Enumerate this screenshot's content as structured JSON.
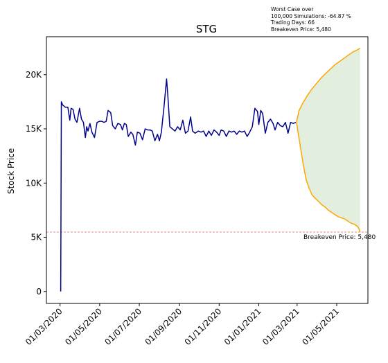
{
  "annotation": {
    "line1": "Worst Case over",
    "line2": "100,000 Simulations: -64.87 %",
    "line3": "Trading Days: 66",
    "line4": "Breakeven Price: 5,480"
  },
  "chart_data": {
    "type": "line",
    "title": "STG",
    "xlabel": "",
    "ylabel": "Stock Price",
    "ylim": [
      -1100,
      23500
    ],
    "yticks": [
      0,
      5000,
      10000,
      15000,
      20000
    ],
    "ytick_labels": [
      "0",
      "5K",
      "10K",
      "15K",
      "20K"
    ],
    "xticks": [
      "2020-03-01",
      "2020-05-01",
      "2020-07-01",
      "2020-09-01",
      "2020-11-01",
      "2021-01-01",
      "2021-03-01",
      "2021-05-01"
    ],
    "xtick_labels": [
      "01/03/2020",
      "01/05/2020",
      "01/07/2020",
      "01/09/2020",
      "01/11/2020",
      "01/01/2021",
      "01/03/2021",
      "01/05/2021"
    ],
    "xlim": [
      "2020-02-09",
      "2021-06-18"
    ],
    "grid": false,
    "colors": {
      "history": "#00008b",
      "projection": "#ffa500",
      "band": "#d9ead3",
      "breakeven": "#e06666"
    },
    "breakeven": {
      "value": 5480,
      "label": "Breakeven Price: 5,480"
    },
    "series": [
      {
        "values": [
          [
            "2020-03-02",
            0
          ],
          [
            "2020-03-03",
            17500
          ],
          [
            "2020-03-05",
            17200
          ],
          [
            "2020-03-09",
            17000
          ],
          [
            "2020-03-13",
            17000
          ],
          [
            "2020-03-16",
            15800
          ],
          [
            "2020-03-18",
            16900
          ],
          [
            "2020-03-21",
            16800
          ],
          [
            "2020-03-24",
            15900
          ],
          [
            "2020-03-27",
            15600
          ],
          [
            "2020-03-31",
            16900
          ],
          [
            "2020-04-03",
            15900
          ],
          [
            "2020-04-06",
            15600
          ],
          [
            "2020-04-09",
            14200
          ],
          [
            "2020-04-11",
            15200
          ],
          [
            "2020-04-13",
            14800
          ],
          [
            "2020-04-16",
            15500
          ],
          [
            "2020-04-19",
            14700
          ],
          [
            "2020-04-23",
            14200
          ],
          [
            "2020-04-27",
            15600
          ],
          [
            "2020-05-01",
            15700
          ],
          [
            "2020-05-04",
            15700
          ],
          [
            "2020-05-08",
            15600
          ],
          [
            "2020-05-11",
            15700
          ],
          [
            "2020-05-14",
            16700
          ],
          [
            "2020-05-18",
            16500
          ],
          [
            "2020-05-21",
            15300
          ],
          [
            "2020-05-25",
            15000
          ],
          [
            "2020-05-29",
            15500
          ],
          [
            "2020-06-02",
            15400
          ],
          [
            "2020-06-05",
            14900
          ],
          [
            "2020-06-08",
            15500
          ],
          [
            "2020-06-11",
            15400
          ],
          [
            "2020-06-14",
            14300
          ],
          [
            "2020-06-18",
            14700
          ],
          [
            "2020-06-21",
            14500
          ],
          [
            "2020-06-25",
            13500
          ],
          [
            "2020-06-28",
            14700
          ],
          [
            "2020-07-02",
            14600
          ],
          [
            "2020-07-06",
            14000
          ],
          [
            "2020-07-10",
            15000
          ],
          [
            "2020-07-14",
            14900
          ],
          [
            "2020-07-18",
            14900
          ],
          [
            "2020-07-21",
            14800
          ],
          [
            "2020-07-25",
            13900
          ],
          [
            "2020-07-29",
            14500
          ],
          [
            "2020-08-01",
            13900
          ],
          [
            "2020-08-04",
            14700
          ],
          [
            "2020-08-08",
            17000
          ],
          [
            "2020-08-12",
            19600
          ],
          [
            "2020-08-14",
            18000
          ],
          [
            "2020-08-17",
            15200
          ],
          [
            "2020-08-21",
            15000
          ],
          [
            "2020-08-25",
            14800
          ],
          [
            "2020-08-29",
            15200
          ],
          [
            "2020-09-02",
            14900
          ],
          [
            "2020-09-06",
            15800
          ],
          [
            "2020-09-10",
            14600
          ],
          [
            "2020-09-14",
            14800
          ],
          [
            "2020-09-18",
            16100
          ],
          [
            "2020-09-21",
            14800
          ],
          [
            "2020-09-25",
            14600
          ],
          [
            "2020-09-30",
            14800
          ],
          [
            "2020-10-04",
            14700
          ],
          [
            "2020-10-08",
            14800
          ],
          [
            "2020-10-12",
            14300
          ],
          [
            "2020-10-16",
            14800
          ],
          [
            "2020-10-20",
            14400
          ],
          [
            "2020-10-24",
            14900
          ],
          [
            "2020-10-28",
            14700
          ],
          [
            "2020-11-01",
            14400
          ],
          [
            "2020-11-04",
            14900
          ],
          [
            "2020-11-08",
            14800
          ],
          [
            "2020-11-12",
            14300
          ],
          [
            "2020-11-16",
            14800
          ],
          [
            "2020-11-20",
            14700
          ],
          [
            "2020-11-24",
            14800
          ],
          [
            "2020-11-28",
            14500
          ],
          [
            "2020-12-02",
            14800
          ],
          [
            "2020-12-06",
            14700
          ],
          [
            "2020-12-10",
            14800
          ],
          [
            "2020-12-14",
            14300
          ],
          [
            "2020-12-18",
            14700
          ],
          [
            "2020-12-22",
            15200
          ],
          [
            "2020-12-26",
            16900
          ],
          [
            "2020-12-30",
            16600
          ],
          [
            "2021-01-01",
            15400
          ],
          [
            "2021-01-04",
            16700
          ],
          [
            "2021-01-07",
            16400
          ],
          [
            "2021-01-11",
            14600
          ],
          [
            "2021-01-15",
            15600
          ],
          [
            "2021-01-19",
            15900
          ],
          [
            "2021-01-23",
            15500
          ],
          [
            "2021-01-26",
            14900
          ],
          [
            "2021-01-30",
            15600
          ],
          [
            "2021-02-03",
            15300
          ],
          [
            "2021-02-07",
            15200
          ],
          [
            "2021-02-11",
            15600
          ],
          [
            "2021-02-15",
            14600
          ],
          [
            "2021-02-19",
            15600
          ],
          [
            "2021-02-23",
            15500
          ],
          [
            "2021-02-27",
            15600
          ]
        ]
      },
      {
        "values": [
          [
            "2021-02-28",
            15600
          ],
          [
            "2021-03-04",
            16700
          ],
          [
            "2021-03-10",
            17400
          ],
          [
            "2021-03-17",
            18100
          ],
          [
            "2021-03-24",
            18700
          ],
          [
            "2021-03-31",
            19200
          ],
          [
            "2021-04-07",
            19700
          ],
          [
            "2021-04-14",
            20100
          ],
          [
            "2021-04-21",
            20500
          ],
          [
            "2021-04-28",
            20900
          ],
          [
            "2021-05-05",
            21200
          ],
          [
            "2021-05-12",
            21500
          ],
          [
            "2021-05-19",
            21800
          ],
          [
            "2021-05-26",
            22100
          ],
          [
            "2021-06-02",
            22300
          ],
          [
            "2021-06-06",
            22450
          ]
        ]
      },
      {
        "values": [
          [
            "2021-02-28",
            15600
          ],
          [
            "2021-03-03",
            14500
          ],
          [
            "2021-03-07",
            13000
          ],
          [
            "2021-03-11",
            11500
          ],
          [
            "2021-03-15",
            10300
          ],
          [
            "2021-03-19",
            9600
          ],
          [
            "2021-03-24",
            8900
          ],
          [
            "2021-03-29",
            8600
          ],
          [
            "2021-04-03",
            8300
          ],
          [
            "2021-04-08",
            8000
          ],
          [
            "2021-04-13",
            7800
          ],
          [
            "2021-04-18",
            7500
          ],
          [
            "2021-04-23",
            7300
          ],
          [
            "2021-04-28",
            7100
          ],
          [
            "2021-05-03",
            6900
          ],
          [
            "2021-05-08",
            6800
          ],
          [
            "2021-05-13",
            6700
          ],
          [
            "2021-05-18",
            6500
          ],
          [
            "2021-05-23",
            6300
          ],
          [
            "2021-05-28",
            6200
          ],
          [
            "2021-06-02",
            6000
          ],
          [
            "2021-06-04",
            5800
          ],
          [
            "2021-06-06",
            5480
          ]
        ]
      }
    ]
  }
}
